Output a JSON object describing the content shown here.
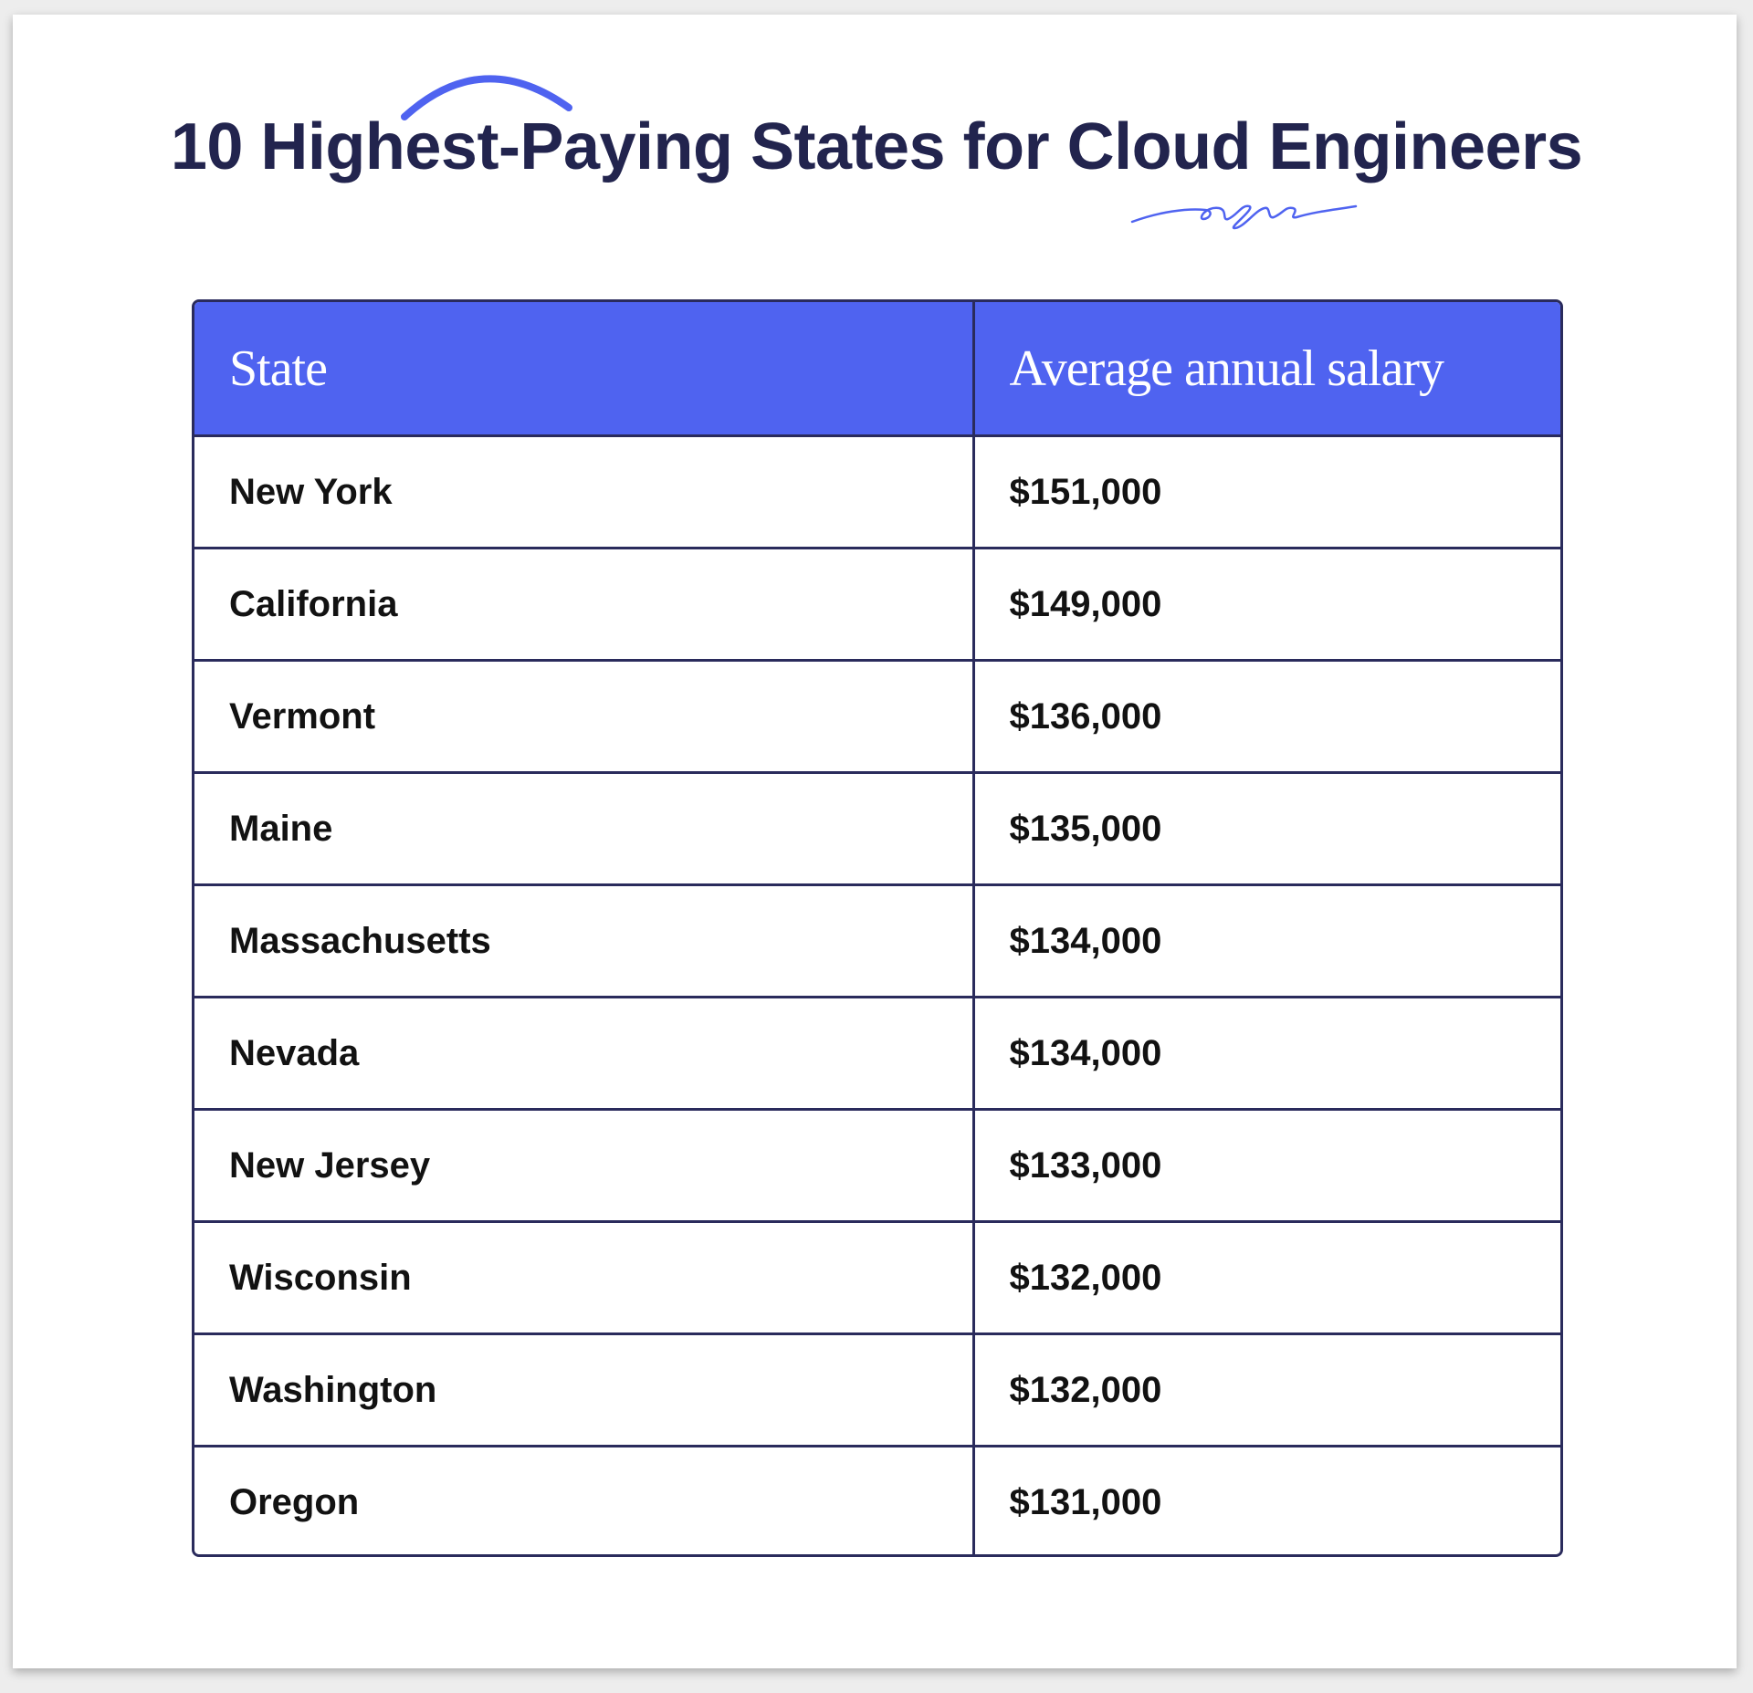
{
  "chart_data": {
    "type": "table",
    "title": "10 Highest-Paying States for Cloud Engineers",
    "columns": [
      "State",
      "Average annual salary"
    ],
    "rows": [
      [
        "New York",
        "$151,000"
      ],
      [
        "California",
        "$149,000"
      ],
      [
        "Vermont",
        "$136,000"
      ],
      [
        "Maine",
        "$135,000"
      ],
      [
        "Massachusetts",
        "$134,000"
      ],
      [
        "Nevada",
        "$134,000"
      ],
      [
        "New Jersey",
        "$133,000"
      ],
      [
        "Wisconsin",
        "$132,000"
      ],
      [
        "Washington",
        "$132,000"
      ],
      [
        "Oregon",
        "$131,000"
      ]
    ]
  },
  "colors": {
    "header_bg": "#4f63f0",
    "border": "#2a2b5c",
    "title": "#22244e",
    "accent_stroke": "#4f63f0"
  }
}
